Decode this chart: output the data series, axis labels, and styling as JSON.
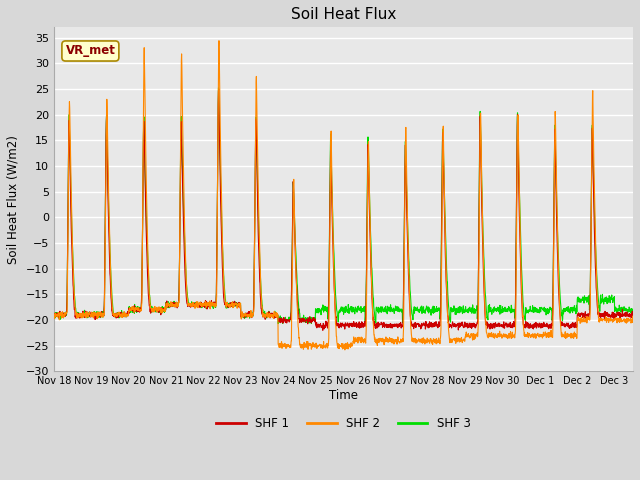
{
  "title": "Soil Heat Flux",
  "ylabel": "Soil Heat Flux (W/m2)",
  "xlabel": "Time",
  "ylim": [
    -30,
    37
  ],
  "yticks": [
    -30,
    -25,
    -20,
    -15,
    -10,
    -5,
    0,
    5,
    10,
    15,
    20,
    25,
    30,
    35
  ],
  "fig_bg_color": "#d8d8d8",
  "plot_bg_color": "#e8e8e8",
  "shf1_color": "#cc0000",
  "shf2_color": "#ff8800",
  "shf3_color": "#00dd00",
  "legend_entries": [
    "SHF 1",
    "SHF 2",
    "SHF 3"
  ],
  "annotation_text": "VR_met",
  "line_width": 0.8,
  "n_days": 15.5,
  "day_peaks_shf1": [
    19,
    20,
    19,
    19,
    26,
    20,
    7,
    14,
    14,
    14,
    17,
    20,
    20,
    17,
    18
  ],
  "day_peaks_shf2": [
    23,
    23,
    33,
    32,
    35,
    28,
    7,
    16,
    15,
    18,
    18,
    21,
    21,
    21,
    25
  ],
  "day_peaks_shf3": [
    20,
    20,
    20,
    20,
    26,
    20,
    7,
    16,
    16,
    15,
    18,
    21,
    21,
    18,
    18
  ],
  "night_shf1": [
    -19,
    -19,
    -18,
    -17,
    -17,
    -19,
    -20,
    -21,
    -21,
    -21,
    -21,
    -21,
    -21,
    -21,
    -19
  ],
  "night_shf2": [
    -19,
    -19,
    -18,
    -17,
    -17,
    -19,
    -25,
    -25,
    -24,
    -24,
    -24,
    -23,
    -23,
    -23,
    -20
  ],
  "night_shf3": [
    -19,
    -19,
    -18,
    -17,
    -17,
    -19,
    -20,
    -20,
    -20,
    -20,
    -20,
    -20,
    -20,
    -20,
    -18
  ],
  "x_tick_labels": [
    "Nov 18",
    "Nov 19",
    "Nov 20",
    "Nov 21",
    "Nov 22",
    "Nov 23",
    "Nov 24",
    "Nov 25",
    "Nov 26",
    "Nov 27",
    "Nov 28",
    "Nov 29",
    "Nov 30",
    "Dec 1",
    "Dec 2",
    "Dec 3"
  ]
}
